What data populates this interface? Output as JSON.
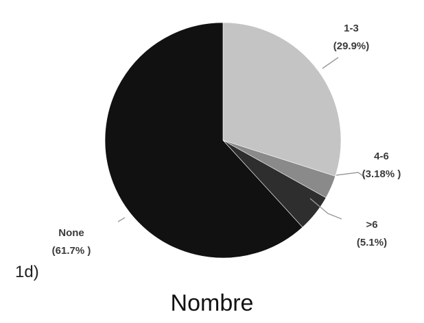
{
  "panel_label": "1d)",
  "caption": "Nombre",
  "chart_data": {
    "type": "pie",
    "start_angle_deg": 0,
    "direction": "clockwise",
    "slices": [
      {
        "category": "1-3",
        "value": 29.9,
        "percent_label": "(29.9%)",
        "color": "#c4c4c4"
      },
      {
        "category": "4-6",
        "value": 3.18,
        "percent_label": "(3.18% )",
        "color": "#8a8a8a"
      },
      {
        "category": ">6",
        "value": 5.1,
        "percent_label": "(5.1%)",
        "color": "#2e2e2e"
      },
      {
        "category": "None",
        "value": 61.7,
        "percent_label": "(61.7% )",
        "color": "#111111"
      }
    ]
  }
}
